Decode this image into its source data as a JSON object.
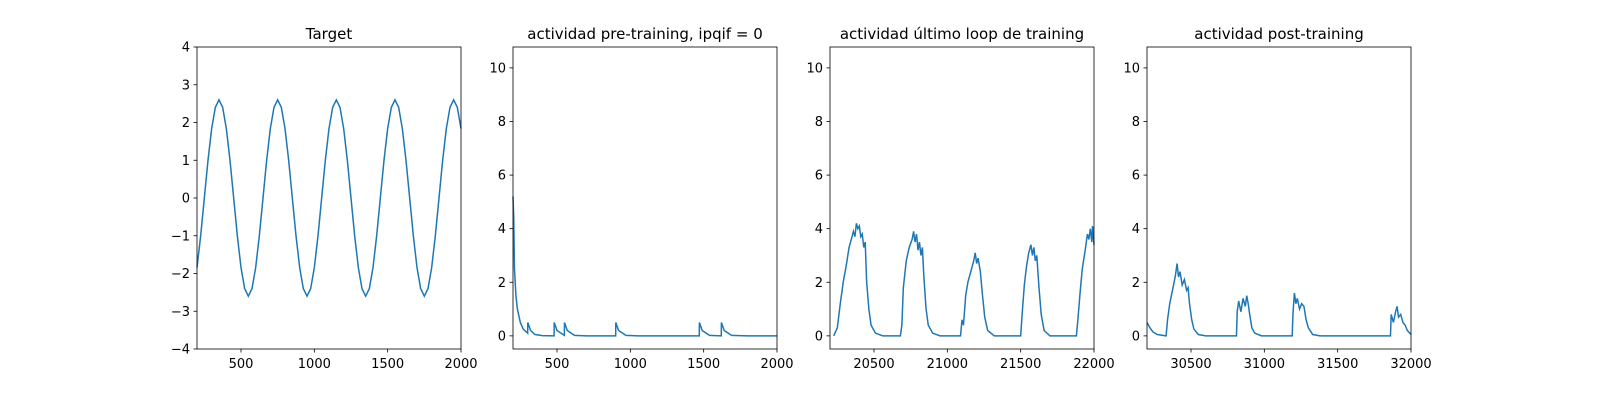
{
  "chart_data": [
    {
      "type": "line",
      "title": "Target",
      "color": "#1f77b4",
      "xlim": [
        200,
        2000
      ],
      "ylim": [
        -4,
        4
      ],
      "xticks": [
        500,
        1000,
        1500,
        2000
      ],
      "yticks": [
        {
          "value": -4,
          "label": "−4"
        },
        {
          "value": -3,
          "label": "−3"
        },
        {
          "value": -2,
          "label": "−2"
        },
        {
          "value": -1,
          "label": "−1"
        },
        0,
        1,
        2,
        3,
        4
      ],
      "x": [
        200,
        225,
        250,
        275,
        300,
        325,
        350,
        375,
        400,
        425,
        450,
        475,
        500,
        525,
        550,
        575,
        600,
        625,
        650,
        675,
        700,
        725,
        750,
        775,
        800,
        825,
        850,
        875,
        900,
        925,
        950,
        975,
        1000,
        1025,
        1050,
        1075,
        1100,
        1125,
        1150,
        1175,
        1200,
        1225,
        1250,
        1275,
        1300,
        1325,
        1350,
        1375,
        1400,
        1425,
        1450,
        1475,
        1500,
        1525,
        1550,
        1575,
        1600,
        1625,
        1650,
        1675,
        1700,
        1725,
        1750,
        1775,
        1800,
        1825,
        1850,
        1875,
        1900,
        1925,
        1950,
        1975,
        2000
      ],
      "values": [
        -1.84,
        -1.0,
        0,
        1.0,
        1.84,
        2.4,
        2.6,
        2.4,
        1.84,
        1.0,
        0,
        -1.0,
        -1.84,
        -2.4,
        -2.6,
        -2.4,
        -1.84,
        -1.0,
        0,
        1.0,
        1.84,
        2.4,
        2.6,
        2.4,
        1.84,
        1.0,
        0,
        -1.0,
        -1.84,
        -2.4,
        -2.6,
        -2.4,
        -1.84,
        -1.0,
        0,
        1.0,
        1.84,
        2.4,
        2.6,
        2.4,
        1.84,
        1.0,
        0,
        -1.0,
        -1.84,
        -2.4,
        -2.6,
        -2.4,
        -1.84,
        -1.0,
        0,
        1.0,
        1.84,
        2.4,
        2.6,
        2.4,
        1.84,
        1.0,
        0,
        -1.0,
        -1.84,
        -2.4,
        -2.6,
        -2.4,
        -1.84,
        -1.0,
        0,
        1.0,
        1.84,
        2.4,
        2.6,
        2.4,
        1.84
      ]
    },
    {
      "type": "line",
      "title": "actividad pre-training, ipqif = 0",
      "color": "#1f77b4",
      "xlim": [
        200,
        2000
      ],
      "ylim": [
        -0.49,
        10.78
      ],
      "xticks": [
        500,
        1000,
        1500,
        2000
      ],
      "yticks": [
        0,
        2,
        4,
        6,
        8,
        10
      ],
      "x": [
        200,
        205,
        210,
        220,
        230,
        250,
        270,
        300,
        301,
        320,
        350,
        400,
        480,
        481,
        500,
        550,
        551,
        570,
        620,
        700,
        900,
        901,
        920,
        970,
        1050,
        1470,
        1471,
        1490,
        1540,
        1620,
        1621,
        1640,
        1690,
        1800,
        2000
      ],
      "values": [
        5.2,
        4.4,
        2.5,
        1.5,
        1.0,
        0.5,
        0.25,
        0.1,
        0.5,
        0.2,
        0.05,
        0.01,
        0,
        0.5,
        0.2,
        0.02,
        0.5,
        0.2,
        0.02,
        0,
        0,
        0.5,
        0.2,
        0.02,
        0,
        0,
        0.5,
        0.2,
        0.02,
        0,
        0.5,
        0.2,
        0.02,
        0,
        0
      ]
    },
    {
      "type": "line",
      "title": "actividad último loop de training",
      "color": "#1f77b4",
      "xlim": [
        20200,
        22000
      ],
      "ylim": [
        -0.49,
        10.78
      ],
      "xticks": [
        20500,
        21000,
        21500,
        22000
      ],
      "yticks": [
        0,
        2,
        4,
        6,
        8,
        10
      ],
      "x": [
        20225,
        20250,
        20270,
        20290,
        20310,
        20330,
        20345,
        20360,
        20370,
        20380,
        20390,
        20400,
        20410,
        20420,
        20430,
        20440,
        20450,
        20465,
        20480,
        20510,
        20560,
        20680,
        20690,
        20700,
        20720,
        20740,
        20760,
        20770,
        20780,
        20790,
        20800,
        20810,
        20820,
        20830,
        20840,
        20855,
        20870,
        20900,
        20950,
        21090,
        21100,
        21110,
        21125,
        21140,
        21160,
        21180,
        21190,
        21200,
        21210,
        21225,
        21240,
        21255,
        21275,
        21320,
        21500,
        21510,
        21525,
        21540,
        21555,
        21570,
        21580,
        21590,
        21600,
        21610,
        21625,
        21640,
        21660,
        21700,
        21880,
        21890,
        21905,
        21920,
        21940,
        21955,
        21965,
        21975,
        21985,
        21990,
        22000
      ],
      "values": [
        0,
        0.3,
        1.2,
        2.0,
        2.6,
        3.3,
        3.6,
        3.9,
        3.7,
        4.2,
        4.0,
        4.1,
        3.7,
        3.8,
        3.3,
        3.5,
        2.0,
        1.0,
        0.4,
        0.1,
        0,
        0,
        0.4,
        1.8,
        2.8,
        3.3,
        3.6,
        3.9,
        3.5,
        3.8,
        3.2,
        3.5,
        3.0,
        3.3,
        2.2,
        1.0,
        0.4,
        0.1,
        0,
        0,
        0.6,
        0.4,
        1.5,
        2.0,
        2.4,
        2.8,
        3.1,
        2.7,
        2.9,
        2.4,
        1.5,
        0.7,
        0.2,
        0,
        0,
        0.8,
        1.9,
        2.6,
        3.1,
        3.4,
        3.0,
        3.3,
        2.8,
        3.0,
        1.8,
        0.8,
        0.2,
        0,
        0,
        0.6,
        1.6,
        2.5,
        3.2,
        3.8,
        3.6,
        4.0,
        3.5,
        4.1,
        3.4
      ]
    },
    {
      "type": "line",
      "title": "actividad post-training",
      "color": "#1f77b4",
      "xlim": [
        30200,
        32000
      ],
      "ylim": [
        -0.49,
        10.78
      ],
      "xticks": [
        30500,
        31000,
        31500,
        32000
      ],
      "yticks": [
        0,
        2,
        4,
        6,
        8,
        10
      ],
      "x": [
        30200,
        30220,
        30240,
        30270,
        30330,
        30340,
        30355,
        30370,
        30385,
        30395,
        30405,
        30415,
        30425,
        30440,
        30455,
        30470,
        30480,
        30490,
        30505,
        30520,
        30550,
        30600,
        30810,
        30815,
        30825,
        30840,
        30855,
        30870,
        30880,
        30890,
        30900,
        30915,
        30935,
        30980,
        31190,
        31195,
        31205,
        31215,
        31225,
        31240,
        31255,
        31270,
        31285,
        31300,
        31330,
        31380,
        31860,
        31865,
        31880,
        31895,
        31905,
        31915,
        31930,
        31945,
        31960,
        31975,
        32000
      ],
      "values": [
        0.5,
        0.3,
        0.15,
        0.05,
        0,
        0.6,
        1.2,
        1.6,
        2.0,
        2.3,
        2.7,
        2.2,
        2.4,
        1.9,
        2.1,
        1.7,
        1.8,
        1.2,
        0.6,
        0.25,
        0.05,
        0,
        0,
        0.9,
        1.3,
        0.9,
        1.4,
        1.1,
        1.5,
        1.2,
        0.8,
        0.3,
        0.1,
        0,
        0,
        0.8,
        1.6,
        1.2,
        1.4,
        1.0,
        1.2,
        1.1,
        0.6,
        0.3,
        0.05,
        0,
        0,
        0.8,
        0.5,
        0.9,
        1.1,
        0.7,
        0.8,
        0.5,
        0.4,
        0.2,
        0.05
      ]
    }
  ]
}
